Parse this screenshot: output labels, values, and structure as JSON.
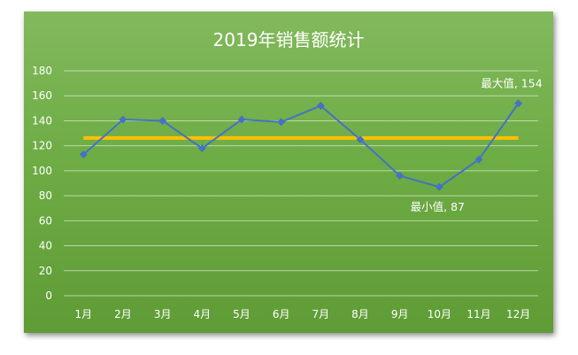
{
  "chart_data": {
    "type": "line",
    "title": "2019年销售额统计",
    "categories": [
      "1月",
      "2月",
      "3月",
      "4月",
      "5月",
      "6月",
      "7月",
      "8月",
      "9月",
      "10月",
      "11月",
      "12月"
    ],
    "series": [
      {
        "values": [
          113,
          141,
          140,
          118,
          141,
          139,
          152,
          125,
          96,
          87,
          109,
          154
        ],
        "color": "#4472c4",
        "marker": "diamond"
      }
    ],
    "average_line": {
      "value": 126.25,
      "color": "#ffc000"
    },
    "ylim": [
      0,
      180
    ],
    "yticks": [
      0,
      20,
      40,
      60,
      80,
      100,
      120,
      140,
      160,
      180
    ],
    "grid": true,
    "legend": "none",
    "annotations": [
      {
        "index": 11,
        "text": "最大值, 154"
      },
      {
        "index": 9,
        "text": "最小值, 87"
      }
    ],
    "background_color": "#70ad47"
  }
}
